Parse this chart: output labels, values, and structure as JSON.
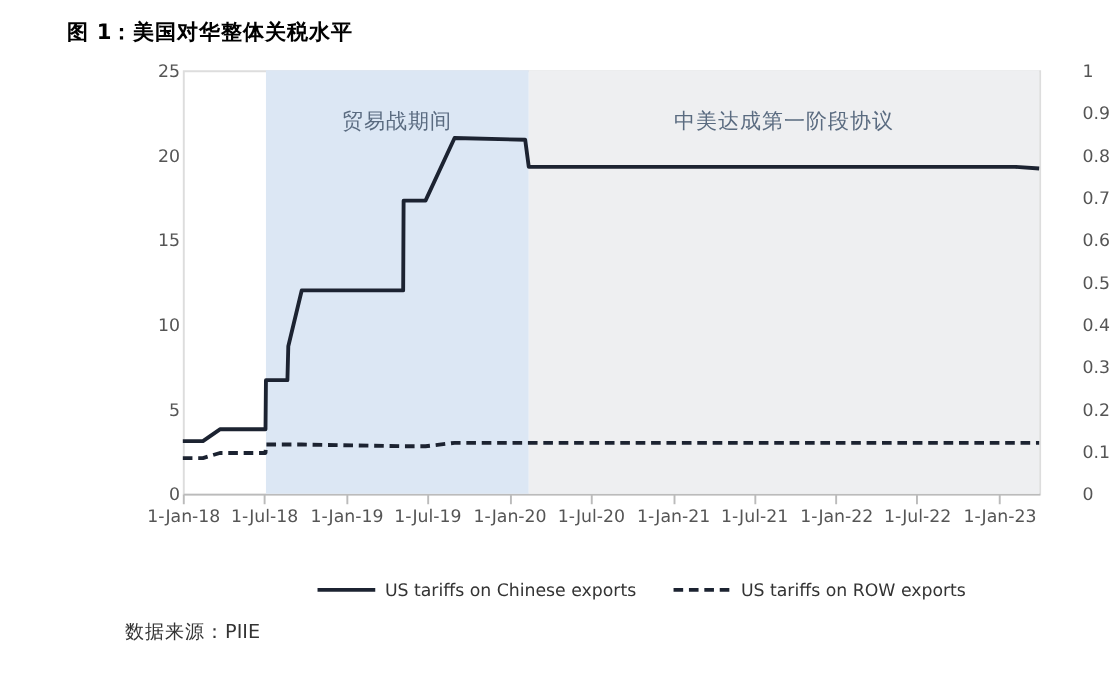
{
  "chart_data": {
    "type": "line",
    "title": "图 1：美国对华整体关税水平",
    "x": [
      "2018-01-01",
      "2018-02-15",
      "2018-03-25",
      "2018-07-05",
      "2018-07-06",
      "2018-08-23",
      "2018-08-25",
      "2018-09-24",
      "2019-05-09",
      "2019-05-10",
      "2019-06-28",
      "2019-09-01",
      "2020-02-06",
      "2020-02-14",
      "2023-02-06",
      "2023-04-01"
    ],
    "series": [
      {
        "name": "US tariffs on Chinese exports",
        "color": "#1c2331",
        "line_style": "solid",
        "values": [
          3.1,
          3.1,
          3.8,
          3.8,
          6.7,
          6.7,
          8.7,
          12.0,
          12.0,
          17.3,
          17.3,
          21.0,
          20.9,
          19.3,
          19.3,
          19.2
        ]
      },
      {
        "name": "US tariffs on ROW exports",
        "color": "#1c2331",
        "line_style": "dashed",
        "values": [
          2.1,
          2.1,
          2.4,
          2.4,
          2.9,
          2.9,
          2.9,
          2.9,
          2.8,
          2.8,
          2.8,
          3.0,
          3.0,
          3.0,
          3.0,
          3.0
        ]
      }
    ],
    "xlim": [
      "2018-01-01",
      "2023-04-01"
    ],
    "xticks": [
      {
        "value": "2018-01-01",
        "label": "1-Jan-18"
      },
      {
        "value": "2018-07-01",
        "label": "1-Jul-18"
      },
      {
        "value": "2019-01-01",
        "label": "1-Jan-19"
      },
      {
        "value": "2019-07-01",
        "label": "1-Jul-19"
      },
      {
        "value": "2020-01-01",
        "label": "1-Jan-20"
      },
      {
        "value": "2020-07-01",
        "label": "1-Jul-20"
      },
      {
        "value": "2021-01-01",
        "label": "1-Jan-21"
      },
      {
        "value": "2021-07-01",
        "label": "1-Jul-21"
      },
      {
        "value": "2022-01-01",
        "label": "1-Jan-22"
      },
      {
        "value": "2022-07-01",
        "label": "1-Jul-22"
      },
      {
        "value": "2023-01-01",
        "label": "1-Jan-23"
      }
    ],
    "ylim": [
      0,
      25
    ],
    "yticks": [
      0,
      5,
      10,
      15,
      20,
      25
    ],
    "y2lim": [
      0,
      1
    ],
    "y2ticks": [
      0,
      0.1,
      0.2,
      0.3,
      0.4,
      0.5,
      0.6,
      0.7,
      0.8,
      0.9,
      1
    ],
    "bands": [
      {
        "axis": "x",
        "from": "2018-07-06",
        "to": "2020-02-14",
        "label": "贸易战期间",
        "color": "#dce7f4"
      },
      {
        "axis": "x",
        "from": "2020-02-14",
        "to": "2023-04-01",
        "label": "中美达成第一阶段协议",
        "color": "#eeeff1"
      }
    ],
    "annotations": [
      "数据来源：PIIE"
    ],
    "grid": false,
    "legend": "bottom",
    "marker": "none"
  }
}
